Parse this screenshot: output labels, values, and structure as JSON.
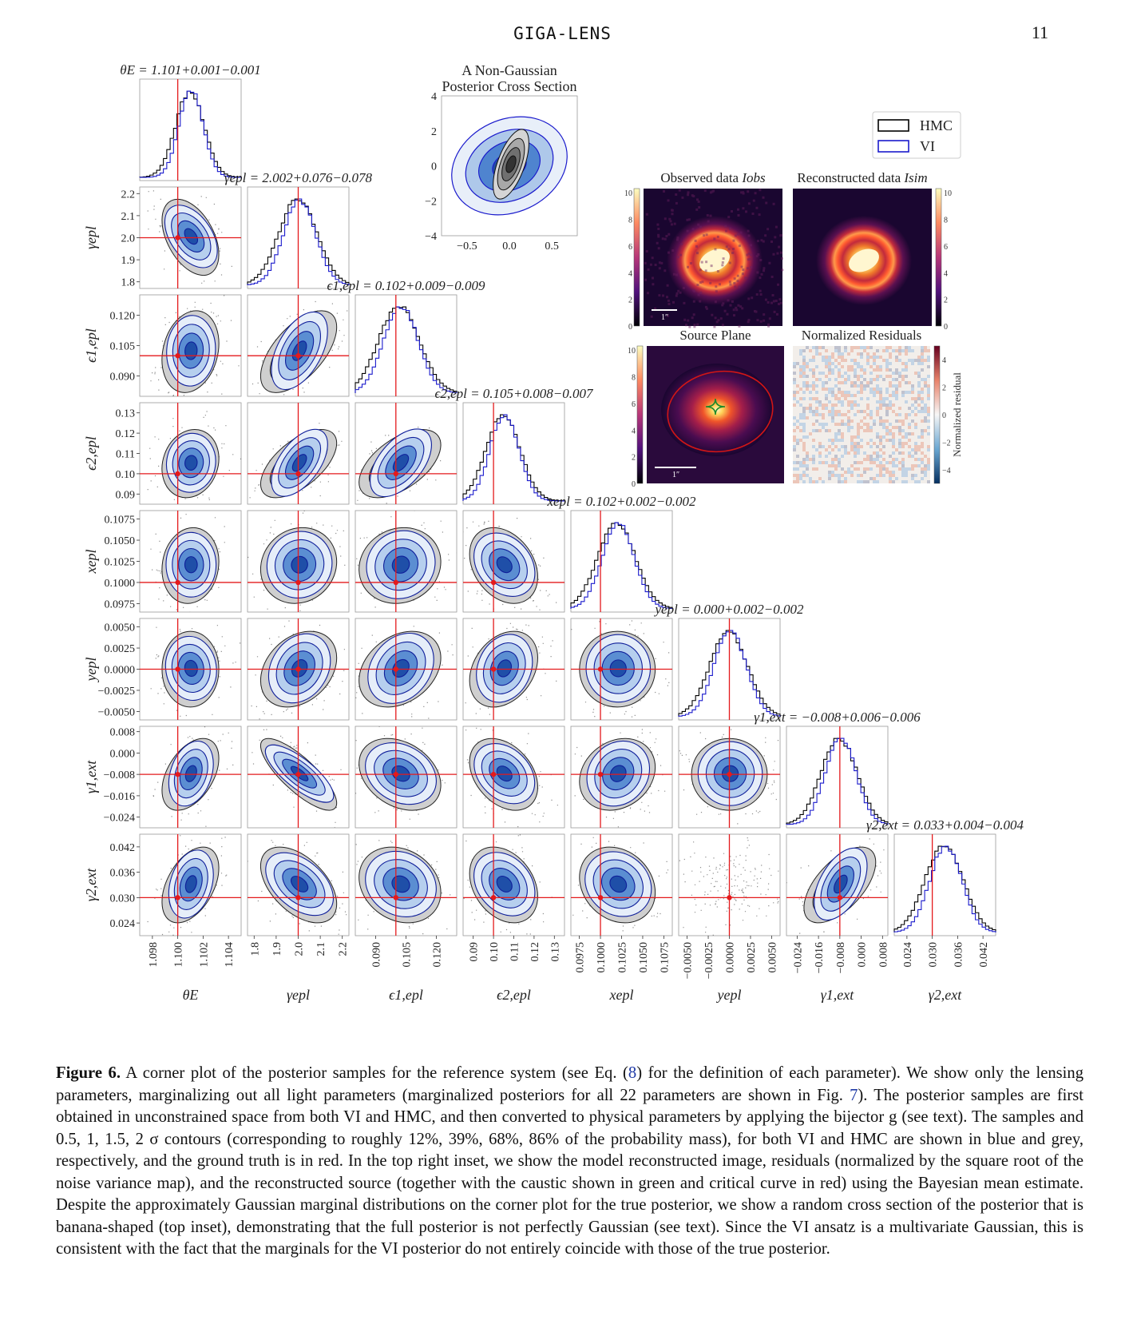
{
  "header": {
    "running_head": "GIGA-LENS",
    "page_number": "11"
  },
  "chart_data": [
    {
      "type": "corner",
      "parameters": [
        {
          "name": "θE",
          "axis_label": "θE",
          "ylabel": "",
          "title": "θE = 1.101+0.001−0.001",
          "median": 1.101,
          "plus": 0.001,
          "minus": 0.001,
          "truth": 1.1,
          "range": [
            1.097,
            1.105
          ],
          "ticks": [
            "1.098",
            "1.100",
            "1.102",
            "1.104"
          ],
          "tick_values": [
            1.098,
            1.1,
            1.102,
            1.104
          ]
        },
        {
          "name": "γepl",
          "axis_label": "γepl",
          "ylabel": "γepl",
          "title": "γepl = 2.002+0.076−0.078",
          "median": 2.002,
          "plus": 0.076,
          "minus": 0.078,
          "truth": 2.0,
          "range": [
            1.77,
            2.23
          ],
          "ticks": [
            "1.8",
            "1.9",
            "2.0",
            "2.1",
            "2.2"
          ],
          "tick_values": [
            1.8,
            1.9,
            2.0,
            2.1,
            2.2
          ]
        },
        {
          "name": "ε1,epl",
          "axis_label": "ϵ1,epl",
          "ylabel": "ϵ1,epl",
          "title": "ϵ1,epl = 0.102+0.009−0.009",
          "median": 0.102,
          "plus": 0.009,
          "minus": 0.009,
          "truth": 0.1,
          "range": [
            0.08,
            0.13
          ],
          "ticks": [
            "0.090",
            "0.105",
            "0.120"
          ],
          "tick_values": [
            0.09,
            0.105,
            0.12
          ]
        },
        {
          "name": "ε2,epl",
          "axis_label": "ϵ2,epl",
          "ylabel": "ϵ2,epl",
          "title": "ϵ2,epl = 0.105+0.008−0.007",
          "median": 0.105,
          "plus": 0.008,
          "minus": 0.007,
          "truth": 0.1,
          "range": [
            0.085,
            0.135
          ],
          "ticks": [
            "0.09",
            "0.10",
            "0.11",
            "0.12",
            "0.13"
          ],
          "tick_values": [
            0.09,
            0.1,
            0.11,
            0.12,
            0.13
          ]
        },
        {
          "name": "xepl",
          "axis_label": "xepl",
          "ylabel": "xepl",
          "title": "xepl = 0.102+0.002−0.002",
          "median": 0.102,
          "plus": 0.002,
          "minus": 0.002,
          "truth": 0.1,
          "range": [
            0.0965,
            0.1085
          ],
          "ticks": [
            "0.0975",
            "0.1000",
            "0.1025",
            "0.1050",
            "0.1075"
          ],
          "tick_values": [
            0.0975,
            0.1,
            0.1025,
            0.105,
            0.1075
          ]
        },
        {
          "name": "yepl",
          "axis_label": "yepl",
          "ylabel": "yepl",
          "title": "yepl = 0.000+0.002−0.002",
          "median": 0.0,
          "plus": 0.002,
          "minus": 0.002,
          "truth": 0.0,
          "range": [
            -0.006,
            0.006
          ],
          "ticks": [
            "−0.0050",
            "−0.0025",
            "0.0000",
            "0.0025",
            "0.0050"
          ],
          "tick_values": [
            -0.005,
            -0.0025,
            0,
            0.0025,
            0.005
          ]
        },
        {
          "name": "γ1,ext",
          "axis_label": "γ1,ext",
          "ylabel": "γ1,ext",
          "title": "γ1,ext = −0.008+0.006−0.006",
          "median": -0.008,
          "plus": 0.006,
          "minus": 0.006,
          "truth": -0.008,
          "range": [
            -0.028,
            0.01
          ],
          "ticks": [
            "−0.024",
            "−0.016",
            "−0.008",
            "0.000",
            "0.008"
          ],
          "tick_values": [
            -0.024,
            -0.016,
            -0.008,
            0.0,
            0.008
          ]
        },
        {
          "name": "γ2,ext",
          "axis_label": "γ2,ext",
          "ylabel": "γ2,ext",
          "title": "γ2,ext = 0.033+0.004−0.004",
          "median": 0.033,
          "plus": 0.004,
          "minus": 0.004,
          "truth": 0.03,
          "range": [
            0.021,
            0.045
          ],
          "ticks": [
            "0.024",
            "0.030",
            "0.036",
            "0.042"
          ],
          "tick_values": [
            0.024,
            0.03,
            0.036,
            0.042
          ]
        }
      ],
      "correlations": [
        [
          0,
          1,
          -0.45
        ],
        [
          0,
          2,
          0.2
        ],
        [
          0,
          3,
          0.15
        ],
        [
          0,
          4,
          0.1
        ],
        [
          0,
          5,
          0.0
        ],
        [
          0,
          6,
          0.45
        ],
        [
          0,
          7,
          0.45
        ],
        [
          1,
          2,
          0.6
        ],
        [
          1,
          3,
          0.6
        ],
        [
          1,
          4,
          0.1
        ],
        [
          1,
          5,
          0.3
        ],
        [
          1,
          6,
          -0.8
        ],
        [
          1,
          7,
          -0.5
        ],
        [
          2,
          3,
          0.55
        ],
        [
          2,
          4,
          0.1
        ],
        [
          2,
          5,
          0.3
        ],
        [
          2,
          6,
          -0.3
        ],
        [
          2,
          7,
          -0.2
        ],
        [
          3,
          4,
          -0.3
        ],
        [
          3,
          5,
          0.3
        ],
        [
          3,
          6,
          -0.35
        ],
        [
          3,
          7,
          -0.3
        ],
        [
          4,
          5,
          0.0
        ],
        [
          4,
          6,
          0.2
        ],
        [
          4,
          7,
          -0.2
        ],
        [
          5,
          6,
          0.0
        ],
        [
          5,
          7,
          0.0
        ],
        [
          6,
          7,
          0.6
        ]
      ],
      "series": [
        {
          "name": "HMC",
          "color": "#000000"
        },
        {
          "name": "VI",
          "color": "#1a1acc"
        }
      ],
      "truth_color": "#e41a1c",
      "legend": "top-right",
      "contour_levels_sigma": [
        0.5,
        1,
        1.5,
        2
      ]
    },
    {
      "type": "contour",
      "title_lines": [
        "A Non-Gaussian",
        "Posterior Cross Section"
      ],
      "xlim": [
        -0.8,
        0.8
      ],
      "ylim": [
        -4,
        4
      ],
      "xticks": [
        "−0.5",
        "0.0",
        "0.5"
      ],
      "xtick_values": [
        -0.5,
        0.0,
        0.5
      ],
      "yticks": [
        "−4",
        "−2",
        "0",
        "2",
        "4"
      ],
      "ytick_values": [
        -4,
        -2,
        0,
        2,
        4
      ]
    },
    {
      "type": "image-panels",
      "panels": [
        {
          "title_main": "Observed data ",
          "title_sym": "Iobs",
          "colorbar_ticks": [
            "0",
            "2",
            "4",
            "6",
            "8",
            "10"
          ],
          "scale_bar": "1″"
        },
        {
          "title_main": "Reconstructed data ",
          "title_sym": "Isim",
          "colorbar_ticks": [
            "0",
            "2",
            "4",
            "6",
            "8",
            "10"
          ]
        },
        {
          "title_main": "Source Plane",
          "colorbar_ticks": [
            "0",
            "2",
            "4",
            "6",
            "8",
            "10"
          ],
          "scale_bar": "1″"
        },
        {
          "title_main": "Normalized Residuals",
          "colorbar_ticks": [
            "−4",
            "−2",
            "0",
            "2",
            "4"
          ],
          "colorbar_label": "Normalized residual"
        }
      ]
    }
  ],
  "caption": {
    "label": "Figure 6.",
    "segments": [
      {
        "t": " A corner plot of the posterior samples for the reference system (see Eq. (",
        "ref": false
      },
      {
        "t": "8",
        "ref": true
      },
      {
        "t": ") for the definition of each parameter). We show only the lensing parameters, marginalizing out all light parameters (marginalized posteriors for all 22 parameters are shown in Fig. ",
        "ref": false
      },
      {
        "t": "7",
        "ref": true
      },
      {
        "t": "). The posterior samples are first obtained in unconstrained space from both VI and HMC, and then converted to physical parameters by applying the bijector g (see text). The samples and 0.5, 1, 1.5, 2 σ contours (corresponding to roughly 12%, 39%, 68%, 86% of the probability mass), for both VI and HMC are shown in blue and grey, respectively, and the ground truth is in red. In the top right inset, we show the model reconstructed image, residuals (normalized by the square root of the noise variance map), and the reconstructed source (together with the caustic shown in green and critical curve in red) using the Bayesian mean estimate. Despite the approximately Gaussian marginal distributions on the corner plot for the true posterior, we show a random cross section of the posterior that is banana-shaped (top inset), demonstrating that the full posterior is not perfectly Gaussian (see text). Since the VI ansatz is a multivariate Gaussian, this is consistent with the fact that the marginals for the VI posterior do not entirely coincide with those of the true posterior.",
        "ref": false
      }
    ]
  }
}
